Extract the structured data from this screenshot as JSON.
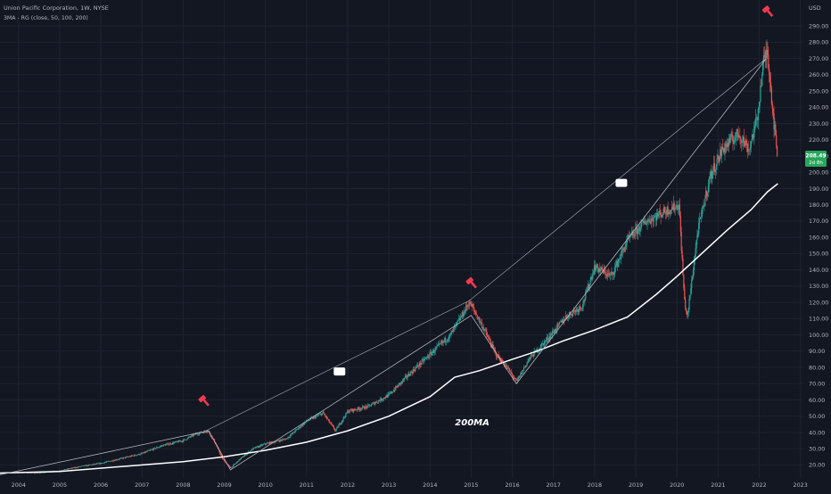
{
  "legend": {
    "title": "Union Pacific Corporation, 1W, NYSE",
    "indicator": "3MA - RG (close, 50, 100, 200)"
  },
  "axis": {
    "currency": "USD"
  },
  "price_badge": {
    "price": "208.49",
    "countdown": "2d 8h",
    "color": "#26a65b"
  },
  "ma_label": "200MA",
  "colors": {
    "background": "#131722",
    "up": "#26a69a",
    "down": "#ef5350",
    "ma": "#ffffff",
    "trendline": "#b2b5be",
    "marker": "#ef3b4f"
  },
  "chart_data": {
    "type": "candlestick",
    "title": "Union Pacific Corporation, 1W, NYSE",
    "y_axis_label": "USD",
    "ylim": [
      12,
      306
    ],
    "xlim": [
      2003.55,
      2023.05
    ],
    "x_ticks": [
      "2004",
      "2005",
      "2006",
      "2007",
      "2008",
      "2009",
      "2010",
      "2011",
      "2012",
      "2013",
      "2014",
      "2015",
      "2016",
      "2017",
      "2018",
      "2019",
      "2020",
      "2021",
      "2022",
      "2023"
    ],
    "y_ticks": [
      20,
      30,
      40,
      50,
      60,
      70,
      80,
      90,
      100,
      110,
      120,
      130,
      140,
      150,
      160,
      170,
      180,
      190,
      200,
      210,
      220,
      230,
      240,
      250,
      260,
      270,
      280,
      290
    ],
    "price_path": [
      [
        2003.55,
        15
      ],
      [
        2004.0,
        15.5
      ],
      [
        2004.5,
        15
      ],
      [
        2005.0,
        16.5
      ],
      [
        2005.5,
        19
      ],
      [
        2006.0,
        21
      ],
      [
        2006.5,
        24
      ],
      [
        2007.0,
        27
      ],
      [
        2007.5,
        32
      ],
      [
        2008.0,
        35
      ],
      [
        2008.3,
        39
      ],
      [
        2008.6,
        41
      ],
      [
        2008.75,
        35
      ],
      [
        2008.95,
        24
      ],
      [
        2009.15,
        18
      ],
      [
        2009.4,
        24
      ],
      [
        2009.7,
        30
      ],
      [
        2010.0,
        33
      ],
      [
        2010.5,
        36
      ],
      [
        2011.0,
        47
      ],
      [
        2011.4,
        52
      ],
      [
        2011.7,
        41
      ],
      [
        2012.0,
        53
      ],
      [
        2012.5,
        56
      ],
      [
        2013.0,
        63
      ],
      [
        2013.5,
        76
      ],
      [
        2014.0,
        88
      ],
      [
        2014.5,
        100
      ],
      [
        2014.8,
        113
      ],
      [
        2014.95,
        120
      ],
      [
        2015.05,
        116
      ],
      [
        2015.3,
        104
      ],
      [
        2015.6,
        88
      ],
      [
        2015.9,
        79
      ],
      [
        2016.1,
        71
      ],
      [
        2016.4,
        85
      ],
      [
        2016.9,
        99
      ],
      [
        2017.3,
        111
      ],
      [
        2017.7,
        118
      ],
      [
        2018.0,
        142
      ],
      [
        2018.4,
        136
      ],
      [
        2018.8,
        158
      ],
      [
        2019.2,
        169
      ],
      [
        2019.7,
        176
      ],
      [
        2020.05,
        180
      ],
      [
        2020.18,
        122
      ],
      [
        2020.25,
        110
      ],
      [
        2020.5,
        163
      ],
      [
        2020.8,
        197
      ],
      [
        2021.1,
        214
      ],
      [
        2021.5,
        224
      ],
      [
        2021.75,
        214
      ],
      [
        2021.95,
        233
      ],
      [
        2022.1,
        268
      ],
      [
        2022.2,
        275
      ],
      [
        2022.35,
        232
      ],
      [
        2022.45,
        208.49
      ]
    ],
    "series": [
      {
        "name": "200MA",
        "values": [
          [
            2003.55,
            15
          ],
          [
            2005.0,
            16
          ],
          [
            2006.5,
            19
          ],
          [
            2008.0,
            22
          ],
          [
            2009.0,
            25
          ],
          [
            2010.0,
            29
          ],
          [
            2011.0,
            34
          ],
          [
            2012.0,
            41
          ],
          [
            2013.0,
            50
          ],
          [
            2014.0,
            62
          ],
          [
            2014.6,
            74
          ],
          [
            2015.2,
            78
          ],
          [
            2016.0,
            85
          ],
          [
            2016.6,
            90
          ],
          [
            2017.2,
            96
          ],
          [
            2018.0,
            103
          ],
          [
            2018.8,
            111
          ],
          [
            2019.5,
            125
          ],
          [
            2020.0,
            136
          ],
          [
            2020.6,
            150
          ],
          [
            2021.2,
            164
          ],
          [
            2021.8,
            177
          ],
          [
            2022.2,
            188
          ],
          [
            2022.45,
            193
          ]
        ]
      }
    ],
    "annotations": {
      "peak_trendline": [
        [
          2008.55,
          41
        ],
        [
          2014.95,
          121
        ],
        [
          2022.17,
          270
        ]
      ],
      "zigzag": [
        [
          2003.55,
          14
        ],
        [
          2008.62,
          41
        ],
        [
          2009.15,
          17
        ],
        [
          2015.0,
          112
        ],
        [
          2016.1,
          70
        ],
        [
          2022.17,
          270
        ]
      ],
      "sell_markers": [
        [
          2008.5,
          60.5
        ],
        [
          2015.0,
          133
        ],
        [
          2022.2,
          300
        ]
      ],
      "boxes": [
        [
          2011.8,
          77.5
        ],
        [
          2018.65,
          193.5
        ]
      ],
      "ma_label_at": [
        2015.3,
        46
      ]
    }
  }
}
